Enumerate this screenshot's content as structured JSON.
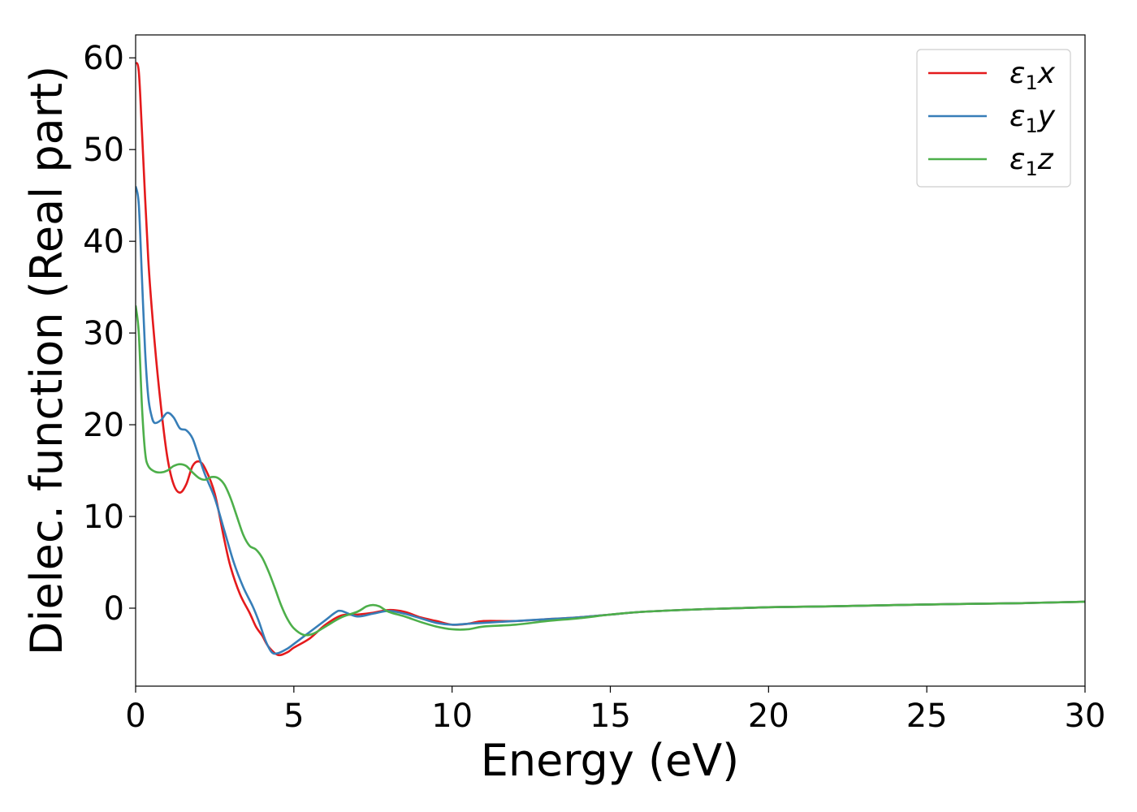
{
  "chart_data": {
    "type": "line",
    "title": "",
    "xlabel": "Energy (eV)",
    "ylabel": "Dielec. function (Real part)",
    "xlim": [
      0,
      30
    ],
    "ylim": [
      -8.5,
      62.5
    ],
    "x_ticks": [
      "0",
      "5",
      "10",
      "15",
      "20",
      "25",
      "30"
    ],
    "y_ticks": [
      "0",
      "10",
      "20",
      "30",
      "40",
      "50",
      "60"
    ],
    "grid": false,
    "legend_position": "top-right",
    "series": [
      {
        "name": "ε1x",
        "legend_main": "ε",
        "legend_sub": "1",
        "legend_var": "x",
        "color": "#e41a1c",
        "points": [
          [
            0,
            59.5
          ],
          [
            0.1,
            58.5
          ],
          [
            0.2,
            52
          ],
          [
            0.4,
            38
          ],
          [
            0.6,
            29
          ],
          [
            0.8,
            22
          ],
          [
            1.0,
            16.5
          ],
          [
            1.2,
            13.5
          ],
          [
            1.4,
            12.6
          ],
          [
            1.6,
            13.5
          ],
          [
            1.8,
            15.5
          ],
          [
            2.0,
            16.0
          ],
          [
            2.2,
            15.2
          ],
          [
            2.5,
            12.5
          ],
          [
            2.8,
            7.5
          ],
          [
            3.0,
            4.5
          ],
          [
            3.3,
            1.5
          ],
          [
            3.6,
            -0.5
          ],
          [
            3.8,
            -2.0
          ],
          [
            4.0,
            -3.0
          ],
          [
            4.2,
            -4.2
          ],
          [
            4.5,
            -5.1
          ],
          [
            4.8,
            -4.8
          ],
          [
            5.0,
            -4.3
          ],
          [
            5.5,
            -3.3
          ],
          [
            6.0,
            -1.8
          ],
          [
            6.5,
            -0.8
          ],
          [
            7.0,
            -0.7
          ],
          [
            7.5,
            -0.5
          ],
          [
            8.0,
            -0.2
          ],
          [
            8.5,
            -0.4
          ],
          [
            9.0,
            -1.0
          ],
          [
            9.5,
            -1.4
          ],
          [
            10.0,
            -1.8
          ],
          [
            10.5,
            -1.7
          ],
          [
            11.0,
            -1.4
          ],
          [
            12.0,
            -1.4
          ],
          [
            13.0,
            -1.2
          ],
          [
            14.0,
            -1.0
          ],
          [
            15.0,
            -0.7
          ],
          [
            16.0,
            -0.4
          ],
          [
            18.0,
            -0.1
          ],
          [
            20.0,
            0.1
          ],
          [
            22.0,
            0.2
          ],
          [
            25.0,
            0.4
          ],
          [
            28.0,
            0.55
          ],
          [
            30.0,
            0.7
          ]
        ]
      },
      {
        "name": "ε1y",
        "legend_main": "ε",
        "legend_sub": "1",
        "legend_var": "y",
        "color": "#377eb8",
        "points": [
          [
            0,
            46
          ],
          [
            0.1,
            44
          ],
          [
            0.2,
            36
          ],
          [
            0.3,
            28
          ],
          [
            0.4,
            23
          ],
          [
            0.5,
            21
          ],
          [
            0.6,
            20.2
          ],
          [
            0.8,
            20.5
          ],
          [
            1.0,
            21.3
          ],
          [
            1.2,
            20.8
          ],
          [
            1.4,
            19.6
          ],
          [
            1.6,
            19.4
          ],
          [
            1.8,
            18.5
          ],
          [
            2.0,
            16.5
          ],
          [
            2.2,
            14.5
          ],
          [
            2.5,
            12.0
          ],
          [
            2.8,
            8.5
          ],
          [
            3.1,
            5.0
          ],
          [
            3.4,
            2.3
          ],
          [
            3.7,
            0.2
          ],
          [
            3.9,
            -1.5
          ],
          [
            4.1,
            -3.5
          ],
          [
            4.3,
            -4.8
          ],
          [
            4.5,
            -4.9
          ],
          [
            4.8,
            -4.4
          ],
          [
            5.0,
            -3.9
          ],
          [
            5.5,
            -2.6
          ],
          [
            6.0,
            -1.3
          ],
          [
            6.3,
            -0.5
          ],
          [
            6.5,
            -0.3
          ],
          [
            7.0,
            -0.9
          ],
          [
            7.5,
            -0.6
          ],
          [
            8.0,
            -0.3
          ],
          [
            8.5,
            -0.6
          ],
          [
            9.0,
            -1.1
          ],
          [
            9.5,
            -1.6
          ],
          [
            10.0,
            -1.8
          ],
          [
            10.5,
            -1.7
          ],
          [
            11.0,
            -1.6
          ],
          [
            12.0,
            -1.4
          ],
          [
            13.0,
            -1.2
          ],
          [
            14.0,
            -1.0
          ],
          [
            15.0,
            -0.7
          ],
          [
            16.0,
            -0.4
          ],
          [
            18.0,
            -0.1
          ],
          [
            20.0,
            0.1
          ],
          [
            22.0,
            0.2
          ],
          [
            25.0,
            0.4
          ],
          [
            28.0,
            0.55
          ],
          [
            30.0,
            0.7
          ]
        ]
      },
      {
        "name": "ε1z",
        "legend_main": "ε",
        "legend_sub": "1",
        "legend_var": "z",
        "color": "#4daf4a",
        "points": [
          [
            0,
            33
          ],
          [
            0.1,
            30
          ],
          [
            0.2,
            22
          ],
          [
            0.3,
            17
          ],
          [
            0.4,
            15.5
          ],
          [
            0.6,
            14.9
          ],
          [
            0.8,
            14.8
          ],
          [
            1.0,
            15.0
          ],
          [
            1.2,
            15.5
          ],
          [
            1.4,
            15.7
          ],
          [
            1.6,
            15.5
          ],
          [
            1.8,
            14.8
          ],
          [
            2.0,
            14.2
          ],
          [
            2.2,
            14.0
          ],
          [
            2.4,
            14.3
          ],
          [
            2.6,
            14.2
          ],
          [
            2.8,
            13.5
          ],
          [
            3.0,
            12.0
          ],
          [
            3.2,
            10.0
          ],
          [
            3.4,
            8.0
          ],
          [
            3.6,
            6.8
          ],
          [
            3.8,
            6.4
          ],
          [
            4.0,
            5.5
          ],
          [
            4.2,
            4.0
          ],
          [
            4.4,
            2.2
          ],
          [
            4.6,
            0.3
          ],
          [
            4.8,
            -1.2
          ],
          [
            5.0,
            -2.2
          ],
          [
            5.3,
            -2.9
          ],
          [
            5.6,
            -2.8
          ],
          [
            6.0,
            -2.0
          ],
          [
            6.5,
            -1.0
          ],
          [
            7.0,
            -0.4
          ],
          [
            7.3,
            0.2
          ],
          [
            7.5,
            0.35
          ],
          [
            7.7,
            0.2
          ],
          [
            8.0,
            -0.4
          ],
          [
            8.5,
            -0.9
          ],
          [
            9.0,
            -1.5
          ],
          [
            9.5,
            -2.0
          ],
          [
            10.0,
            -2.3
          ],
          [
            10.5,
            -2.3
          ],
          [
            11.0,
            -2.0
          ],
          [
            12.0,
            -1.8
          ],
          [
            13.0,
            -1.4
          ],
          [
            14.0,
            -1.1
          ],
          [
            15.0,
            -0.7
          ],
          [
            16.0,
            -0.4
          ],
          [
            18.0,
            -0.1
          ],
          [
            20.0,
            0.1
          ],
          [
            22.0,
            0.2
          ],
          [
            25.0,
            0.4
          ],
          [
            28.0,
            0.55
          ],
          [
            30.0,
            0.7
          ]
        ]
      }
    ]
  }
}
